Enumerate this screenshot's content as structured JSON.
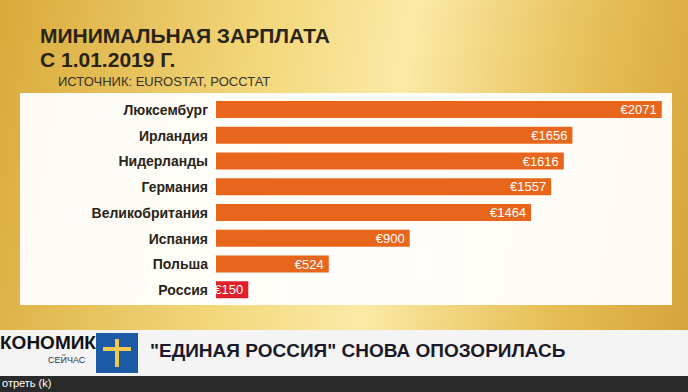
{
  "chart_data": {
    "type": "bar",
    "orientation": "horizontal",
    "title": "МИНИМАЛЬНАЯ ЗАРПЛАТА\nС 1.01.2019 Г.",
    "subtitle": "ИСТОЧНИК: EUROSTAT, РОССТАТ",
    "categories": [
      "Люксембург",
      "Ирландия",
      "Нидерланды",
      "Германия",
      "Великобритания",
      "Испания",
      "Польша",
      "Россия"
    ],
    "values": [
      2071,
      1656,
      1616,
      1557,
      1464,
      900,
      524,
      150
    ],
    "value_labels": [
      "€2071",
      "€1656",
      "€1616",
      "€1557",
      "€1464",
      "€900",
      "€524",
      "€150"
    ],
    "colors": [
      "#e8661c",
      "#e8661c",
      "#e8661c",
      "#e8661c",
      "#e8661c",
      "#e8661c",
      "#e8661c",
      "#e0202a"
    ],
    "xlim": [
      0,
      2100
    ],
    "data_labels": true,
    "tick_labels": "y",
    "grid": false,
    "annotations": [
      "КОНОМИКА",
      "СЕЙЧАС",
      "\"ЕДИНАЯ РОССИЯ\" СНОВА ОПОЗОРИЛАСЬ",
      "отреть (k)"
    ]
  }
}
